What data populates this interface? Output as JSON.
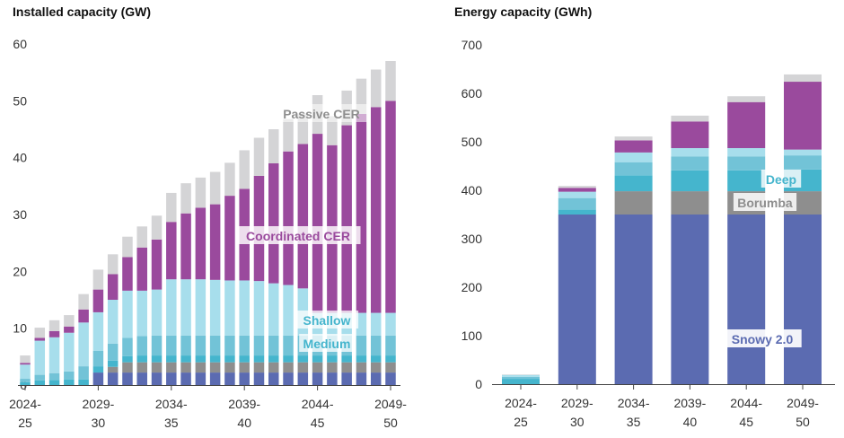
{
  "colors": {
    "snowy": "#5b6bb1",
    "borumba": "#8e8e8e",
    "deep": "#45b5cd",
    "medium": "#72c3d7",
    "shallow": "#a7deec",
    "coordinated": "#9a4a9d",
    "passive": "#d4d4d6",
    "axis": "#444444",
    "lightlabel": "#f5f5f5"
  },
  "chart_data": [
    {
      "type": "bar",
      "stacked": true,
      "title": "Installed capacity (GW)",
      "ylim": [
        0,
        60
      ],
      "yticks": [
        "0",
        "10",
        "20",
        "30",
        "40",
        "50",
        "60"
      ],
      "xtick_labels": [
        [
          "2024-",
          "25"
        ],
        [
          "2029-",
          "30"
        ],
        [
          "2034-",
          "35"
        ],
        [
          "2039-",
          "40"
        ],
        [
          "2044-",
          "45"
        ],
        [
          "2049-",
          "50"
        ]
      ],
      "categories": [
        "2024-25",
        "2025-26",
        "2026-27",
        "2027-28",
        "2028-29",
        "2029-30",
        "2030-31",
        "2031-32",
        "2032-33",
        "2033-34",
        "2034-35",
        "2035-36",
        "2036-37",
        "2037-38",
        "2038-39",
        "2039-40",
        "2040-41",
        "2041-42",
        "2042-43",
        "2043-44",
        "2044-45",
        "2045-46",
        "2046-47",
        "2047-48",
        "2048-49",
        "2049-50"
      ],
      "series": [
        {
          "name": "Snowy 2.0",
          "color": "snowy",
          "values": [
            0,
            0,
            0,
            0,
            0,
            2.2,
            2.2,
            2.2,
            2.2,
            2.2,
            2.2,
            2.2,
            2.2,
            2.2,
            2.2,
            2.2,
            2.2,
            2.2,
            2.2,
            2.2,
            2.2,
            2.2,
            2.2,
            2.2,
            2.2,
            2.2
          ]
        },
        {
          "name": "Borumba",
          "color": "borumba",
          "values": [
            0,
            0,
            0,
            0,
            0,
            0,
            1.0,
            1.8,
            1.8,
            1.8,
            1.8,
            1.8,
            1.8,
            1.8,
            1.8,
            1.8,
            1.8,
            1.8,
            1.8,
            1.8,
            1.8,
            1.8,
            1.8,
            1.8,
            1.8,
            1.8
          ]
        },
        {
          "name": "Deep",
          "color": "deep",
          "values": [
            0.5,
            0.8,
            0.9,
            1.0,
            1.0,
            1.1,
            1.1,
            1.1,
            1.2,
            1.2,
            1.2,
            1.2,
            1.2,
            1.2,
            1.2,
            1.2,
            1.2,
            1.2,
            1.2,
            1.2,
            1.2,
            1.2,
            1.2,
            1.2,
            1.2,
            1.2
          ]
        },
        {
          "name": "Medium",
          "color": "medium",
          "values": [
            0.6,
            1.0,
            1.2,
            1.4,
            2.3,
            2.7,
            3.0,
            3.2,
            3.4,
            3.5,
            3.5,
            3.5,
            3.5,
            3.5,
            3.5,
            3.5,
            3.5,
            3.5,
            3.5,
            3.5,
            3.5,
            3.5,
            3.5,
            3.5,
            3.5,
            3.5
          ]
        },
        {
          "name": "Shallow",
          "color": "shallow",
          "values": [
            2.5,
            6.0,
            6.3,
            6.8,
            7.7,
            6.8,
            7.7,
            8.3,
            8.0,
            8.1,
            9.9,
            9.9,
            9.9,
            9.8,
            9.7,
            9.7,
            9.6,
            9.2,
            8.9,
            8.3,
            4.0,
            4.0,
            4.0,
            4.0,
            4.0,
            4.0
          ]
        },
        {
          "name": "Coordinated CER",
          "color": "coordinated",
          "values": [
            0.3,
            0.5,
            1.1,
            1.1,
            2.3,
            4.0,
            4.5,
            5.9,
            7.6,
            8.8,
            10.1,
            11.6,
            12.6,
            13.3,
            14.9,
            16.1,
            18.5,
            21.1,
            23.5,
            25.4,
            31.5,
            29.5,
            33.0,
            35.0,
            36.2,
            37.3
          ]
        },
        {
          "name": "Passive CER",
          "color": "passive",
          "values": [
            1.3,
            1.8,
            1.9,
            2.0,
            2.7,
            3.5,
            3.5,
            3.6,
            3.7,
            4.2,
            5.1,
            5.3,
            5.3,
            5.7,
            5.8,
            6.8,
            6.7,
            6.0,
            5.7,
            5.4,
            6.8,
            5.1,
            6.1,
            6.2,
            6.6,
            7.0
          ]
        }
      ],
      "labels": [
        "Passive CER",
        "Coordinated CER",
        "Shallow",
        "Medium"
      ]
    },
    {
      "type": "bar",
      "stacked": true,
      "title": "Energy capacity (GWh)",
      "ylim": [
        0,
        700
      ],
      "yticks": [
        "0",
        "100",
        "200",
        "300",
        "400",
        "500",
        "600",
        "700"
      ],
      "xtick_labels": [
        [
          "2024-",
          "25"
        ],
        [
          "2029-",
          "30"
        ],
        [
          "2034-",
          "35"
        ],
        [
          "2039-",
          "40"
        ],
        [
          "2044-",
          "45"
        ],
        [
          "2049-",
          "50"
        ]
      ],
      "categories": [
        "2024-25",
        "2029-30",
        "2034-35",
        "2039-40",
        "2044-45",
        "2049-50"
      ],
      "series": [
        {
          "name": "Snowy 2.0",
          "color": "snowy",
          "values": [
            0,
            350,
            350,
            350,
            350,
            350
          ]
        },
        {
          "name": "Borumba",
          "color": "borumba",
          "values": [
            0,
            0,
            48,
            48,
            48,
            48
          ]
        },
        {
          "name": "Deep",
          "color": "deep",
          "values": [
            11,
            10,
            33,
            43,
            43,
            45
          ]
        },
        {
          "name": "Medium",
          "color": "medium",
          "values": [
            4,
            24,
            27,
            29,
            29,
            29
          ]
        },
        {
          "name": "Shallow",
          "color": "shallow",
          "values": [
            4,
            13,
            20,
            17,
            17,
            12
          ]
        },
        {
          "name": "Coordinated CER",
          "color": "coordinated",
          "values": [
            0,
            8,
            25,
            55,
            95,
            140
          ]
        },
        {
          "name": "Passive CER",
          "color": "passive",
          "values": [
            1,
            4,
            8,
            12,
            12,
            15
          ]
        }
      ],
      "labels": [
        "Deep",
        "Borumba",
        "Snowy 2.0"
      ]
    }
  ]
}
